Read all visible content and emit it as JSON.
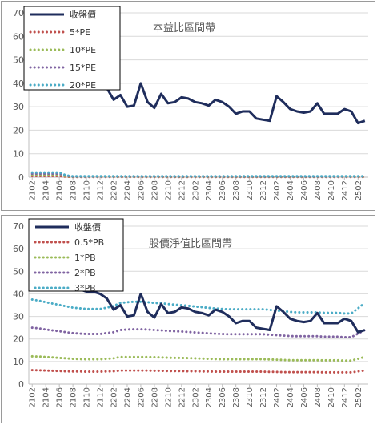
{
  "chart_data": [
    {
      "type": "line",
      "title": "本益比區間帶",
      "xlabel": "",
      "ylabel": "",
      "ylim": [
        0,
        70
      ],
      "yticks": [
        0,
        10,
        20,
        30,
        40,
        50,
        60,
        70
      ],
      "grid": true,
      "legend_position": "top-left",
      "x": [
        "2102",
        "2103",
        "2104",
        "2105",
        "2106",
        "2107",
        "2108",
        "2109",
        "2110",
        "2111",
        "2112",
        "2201",
        "2202",
        "2203",
        "2204",
        "2205",
        "2206",
        "2207",
        "2208",
        "2209",
        "2210",
        "2211",
        "2212",
        "2301",
        "2302",
        "2303",
        "2304",
        "2305",
        "2306",
        "2307",
        "2308",
        "2309",
        "2310",
        "2311",
        "2312",
        "2401",
        "2402",
        "2403",
        "2404",
        "2405",
        "2406",
        "2407",
        "2408",
        "2409",
        "2410",
        "2411",
        "2412",
        "2501",
        "2502",
        "2503"
      ],
      "xtick_labels": [
        "2102",
        "2104",
        "2106",
        "2108",
        "2110",
        "2112",
        "2202",
        "2204",
        "2206",
        "2208",
        "2210",
        "2212",
        "2302",
        "2304",
        "2306",
        "2308",
        "2310",
        "2312",
        "2402",
        "2404",
        "2406",
        "2408",
        "2410",
        "2412",
        "2502"
      ],
      "series": [
        {
          "name": "收盤價",
          "color": "#1f2d5c",
          "style": "solid",
          "values": [
            44,
            44,
            43,
            43,
            44,
            43,
            42,
            42,
            41,
            41,
            40,
            38,
            33,
            35,
            30,
            30.5,
            40,
            32,
            29.5,
            35.5,
            31.5,
            32,
            34,
            33.5,
            32,
            31.5,
            30.5,
            33,
            32,
            30,
            27,
            28,
            28,
            25,
            24.5,
            24,
            34.5,
            32,
            29,
            28,
            27.5,
            28,
            31.5,
            27,
            27,
            27,
            29,
            28,
            23,
            24
          ]
        },
        {
          "name": "5*PE",
          "color": "#c0504d",
          "style": "dotted",
          "values": [
            0.5,
            0.5,
            0.5,
            0.5,
            0.5,
            0.2,
            0.1,
            0.1,
            0.1,
            0.1,
            0.1,
            0.1,
            0.1,
            0.1,
            0.1,
            0.1,
            0.1,
            0.1,
            0.1,
            0.1,
            0.1,
            0.1,
            0.1,
            0.1,
            0.1,
            0.1,
            0.1,
            0.1,
            0.1,
            0.1,
            0.1,
            0.1,
            0.1,
            0.1,
            0.1,
            0.1,
            0.1,
            0.1,
            0.1,
            0.1,
            0.1,
            0.1,
            0.1,
            0.1,
            0.1,
            0.1,
            0.1,
            0.1,
            0.1,
            0.1
          ]
        },
        {
          "name": "10*PE",
          "color": "#9bbb59",
          "style": "dotted",
          "values": [
            1,
            1,
            1,
            1,
            1,
            0.4,
            0.2,
            0.2,
            0.2,
            0.2,
            0.2,
            0.2,
            0.2,
            0.2,
            0.2,
            0.2,
            0.2,
            0.2,
            0.2,
            0.2,
            0.2,
            0.2,
            0.2,
            0.2,
            0.2,
            0.2,
            0.2,
            0.2,
            0.2,
            0.2,
            0.2,
            0.2,
            0.2,
            0.2,
            0.2,
            0.2,
            0.2,
            0.2,
            0.2,
            0.2,
            0.2,
            0.2,
            0.2,
            0.2,
            0.2,
            0.2,
            0.2,
            0.2,
            0.2,
            0.2
          ]
        },
        {
          "name": "15*PE",
          "color": "#8064a2",
          "style": "dotted",
          "values": [
            1.5,
            1.5,
            1.5,
            1.5,
            1.5,
            0.6,
            0.3,
            0.3,
            0.3,
            0.3,
            0.3,
            0.3,
            0.3,
            0.3,
            0.3,
            0.3,
            0.3,
            0.3,
            0.3,
            0.3,
            0.3,
            0.3,
            0.3,
            0.3,
            0.3,
            0.3,
            0.3,
            0.3,
            0.3,
            0.3,
            0.3,
            0.3,
            0.3,
            0.3,
            0.3,
            0.3,
            0.3,
            0.3,
            0.3,
            0.3,
            0.3,
            0.3,
            0.3,
            0.3,
            0.3,
            0.3,
            0.3,
            0.3,
            0.3,
            0.3
          ]
        },
        {
          "name": "20*PE",
          "color": "#4bacc6",
          "style": "dotted",
          "values": [
            2,
            2,
            2,
            2,
            2,
            0.8,
            0.4,
            0.4,
            0.4,
            0.4,
            0.4,
            0.4,
            0.4,
            0.4,
            0.4,
            0.4,
            0.4,
            0.4,
            0.4,
            0.4,
            0.4,
            0.4,
            0.4,
            0.4,
            0.4,
            0.4,
            0.4,
            0.4,
            0.4,
            0.4,
            0.4,
            0.4,
            0.4,
            0.4,
            0.4,
            0.4,
            0.4,
            0.4,
            0.4,
            0.4,
            0.4,
            0.4,
            0.4,
            0.4,
            0.4,
            0.4,
            0.4,
            0.4,
            0.4,
            0.4
          ]
        }
      ]
    },
    {
      "type": "line",
      "title": "股價淨值比區間帶",
      "xlabel": "",
      "ylabel": "",
      "ylim": [
        0,
        70
      ],
      "yticks": [
        0,
        10,
        20,
        30,
        40,
        50,
        60,
        70
      ],
      "grid": true,
      "legend_position": "top-left",
      "x": [
        "2102",
        "2103",
        "2104",
        "2105",
        "2106",
        "2107",
        "2108",
        "2109",
        "2110",
        "2111",
        "2112",
        "2201",
        "2202",
        "2203",
        "2204",
        "2205",
        "2206",
        "2207",
        "2208",
        "2209",
        "2210",
        "2211",
        "2212",
        "2301",
        "2302",
        "2303",
        "2304",
        "2305",
        "2306",
        "2307",
        "2308",
        "2309",
        "2310",
        "2311",
        "2312",
        "2401",
        "2402",
        "2403",
        "2404",
        "2405",
        "2406",
        "2407",
        "2408",
        "2409",
        "2410",
        "2411",
        "2412",
        "2501",
        "2502",
        "2503"
      ],
      "xtick_labels": [
        "2102",
        "2104",
        "2106",
        "2108",
        "2110",
        "2112",
        "2202",
        "2204",
        "2206",
        "2208",
        "2210",
        "2212",
        "2302",
        "2304",
        "2306",
        "2308",
        "2310",
        "2312",
        "2402",
        "2404",
        "2406",
        "2408",
        "2410",
        "2412",
        "2502"
      ],
      "series": [
        {
          "name": "收盤價",
          "color": "#1f2d5c",
          "style": "solid",
          "values": [
            44,
            44,
            43,
            43,
            44,
            43,
            42,
            42,
            41,
            41,
            40,
            38,
            33,
            35,
            30,
            30.5,
            40,
            32,
            29.5,
            35.5,
            31.5,
            32,
            34,
            33.5,
            32,
            31.5,
            30.5,
            33,
            32,
            30,
            27,
            28,
            28,
            25,
            24.5,
            24,
            34.5,
            32,
            29,
            28,
            27.5,
            28,
            31.5,
            27,
            27,
            27,
            29,
            28,
            23,
            24
          ]
        },
        {
          "name": "0.5*PB",
          "color": "#c0504d",
          "style": "dotted",
          "values": [
            6.2,
            6.1,
            6,
            5.9,
            5.8,
            5.7,
            5.6,
            5.6,
            5.5,
            5.5,
            5.5,
            5.6,
            5.7,
            6,
            6,
            6,
            6,
            6,
            5.9,
            5.9,
            5.8,
            5.8,
            5.8,
            5.7,
            5.7,
            5.6,
            5.6,
            5.5,
            5.5,
            5.5,
            5.5,
            5.5,
            5.5,
            5.5,
            5.5,
            5.4,
            5.4,
            5.3,
            5.3,
            5.3,
            5.3,
            5.3,
            5.3,
            5.2,
            5.2,
            5.2,
            5.2,
            5.2,
            5.6,
            6
          ]
        },
        {
          "name": "1*PB",
          "color": "#9bbb59",
          "style": "dotted",
          "values": [
            12.3,
            12.2,
            12,
            11.8,
            11.6,
            11.4,
            11.2,
            11.1,
            11,
            11,
            11,
            11.2,
            11.4,
            12,
            12,
            12,
            12,
            12,
            11.9,
            11.8,
            11.7,
            11.6,
            11.6,
            11.5,
            11.4,
            11.3,
            11.2,
            11.1,
            11,
            11,
            11,
            11,
            11,
            11,
            11,
            10.9,
            10.8,
            10.7,
            10.6,
            10.6,
            10.6,
            10.6,
            10.6,
            10.5,
            10.5,
            10.5,
            10.4,
            10.4,
            11.2,
            12
          ]
        },
        {
          "name": "2*PB",
          "color": "#8064a2",
          "style": "dotted",
          "values": [
            25,
            24.7,
            24.2,
            23.8,
            23.4,
            23,
            22.6,
            22.4,
            22.2,
            22.2,
            22.2,
            22.6,
            23,
            24,
            24.2,
            24.3,
            24.3,
            24.2,
            24,
            23.8,
            23.6,
            23.4,
            23.3,
            23.1,
            22.9,
            22.7,
            22.5,
            22.3,
            22.2,
            22.1,
            22.1,
            22.1,
            22.1,
            22.1,
            22.1,
            21.9,
            21.7,
            21.5,
            21.3,
            21.2,
            21.2,
            21.2,
            21.2,
            21,
            21,
            21,
            20.8,
            20.8,
            22.4,
            24
          ]
        },
        {
          "name": "3*PB",
          "color": "#4bacc6",
          "style": "dotted",
          "values": [
            37.5,
            37,
            36.3,
            35.7,
            35.1,
            34.5,
            33.9,
            33.6,
            33.3,
            33.3,
            33.3,
            33.9,
            34.6,
            36,
            36.3,
            36.5,
            36.5,
            36.3,
            36,
            35.8,
            35.5,
            35.2,
            35,
            34.7,
            34.4,
            34.1,
            33.8,
            33.5,
            33.3,
            33.2,
            33.2,
            33.2,
            33.2,
            33.2,
            33.2,
            32.9,
            32.6,
            32.3,
            32,
            31.8,
            31.8,
            31.8,
            31.8,
            31.6,
            31.6,
            31.6,
            31.3,
            31.3,
            33.6,
            36
          ]
        }
      ]
    }
  ]
}
